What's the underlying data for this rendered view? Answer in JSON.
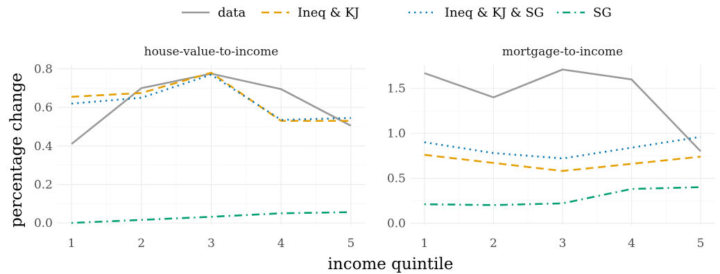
{
  "chart_data": {
    "type": "line",
    "xlabel": "income quintile",
    "ylabel": "percentage change",
    "legend_position": "top",
    "grid": true,
    "x": [
      1,
      2,
      3,
      4,
      5
    ],
    "legend": [
      {
        "key": "data",
        "label": "data",
        "color": "#999999",
        "dash": "solid"
      },
      {
        "key": "ineq_kj",
        "label": "Ineq & KJ",
        "color": "#E69F00",
        "dash": "dashed"
      },
      {
        "key": "ineq_kj_sg",
        "label": "Ineq & KJ & SG",
        "color": "#0072B2",
        "dash": "dotted"
      },
      {
        "key": "sg",
        "label": "SG",
        "color": "#009E73",
        "dash": "dotdash"
      }
    ],
    "panels": [
      {
        "title": "house-value-to-income",
        "ylim": [
          -0.01,
          0.82
        ],
        "yticks": [
          0.0,
          0.2,
          0.4,
          0.6,
          0.8
        ],
        "ytick_labels": [
          "0.0",
          "0.2",
          "0.4",
          "0.6",
          "0.8"
        ],
        "series": [
          {
            "key": "data",
            "values": [
              0.41,
              0.7,
              0.775,
              0.695,
              0.505
            ]
          },
          {
            "key": "ineq_kj",
            "values": [
              0.655,
              0.675,
              0.78,
              0.53,
              0.53
            ]
          },
          {
            "key": "ineq_kj_sg",
            "values": [
              0.62,
              0.65,
              0.77,
              0.535,
              0.545
            ]
          },
          {
            "key": "sg",
            "values": [
              0.0,
              0.016,
              0.032,
              0.05,
              0.056
            ]
          }
        ]
      },
      {
        "title": "mortgage-to-income",
        "ylim": [
          -0.02,
          1.76
        ],
        "yticks": [
          0.0,
          0.5,
          1.0,
          1.5
        ],
        "ytick_labels": [
          "0.0",
          "0.5",
          "1.0",
          "1.5"
        ],
        "series": [
          {
            "key": "data",
            "values": [
              1.67,
              1.4,
              1.71,
              1.6,
              0.8
            ]
          },
          {
            "key": "ineq_kj",
            "values": [
              0.76,
              0.67,
              0.58,
              0.66,
              0.74
            ]
          },
          {
            "key": "ineq_kj_sg",
            "values": [
              0.9,
              0.78,
              0.72,
              0.84,
              0.96
            ]
          },
          {
            "key": "sg",
            "values": [
              0.21,
              0.2,
              0.22,
              0.38,
              0.4
            ]
          }
        ]
      }
    ]
  }
}
